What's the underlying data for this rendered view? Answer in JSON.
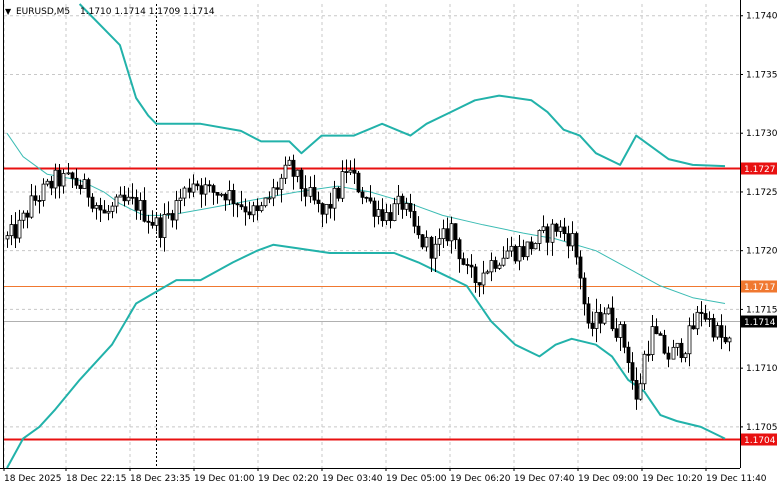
{
  "header": {
    "arrow": "▼",
    "symbol": "EURUSD,M5",
    "ohlc": "1.1710 1.1714 1.1709 1.1714"
  },
  "chart_data": {
    "type": "candlestick",
    "symbol": "EURUSD",
    "timeframe": "M5",
    "ylim": [
      1.17015,
      1.1741
    ],
    "y_ticks": [
      1.1705,
      1.171,
      1.1715,
      1.172,
      1.1725,
      1.173,
      1.1735,
      1.174
    ],
    "y_tick_labels": [
      "1.1705",
      "1.1710",
      "1.1715",
      "1.1720",
      "1.1725",
      "1.1730",
      "1.1735",
      "1.1740"
    ],
    "x_tick_labels": [
      "18 Dec 2025",
      "18 Dec 22:15",
      "18 Dec 23:35",
      "19 Dec 01:00",
      "19 Dec 02:20",
      "19 Dec 03:40",
      "19 Dec 05:00",
      "19 Dec 06:20",
      "19 Dec 07:40",
      "19 Dec 09:00",
      "19 Dec 10:20",
      "19 Dec 11:40"
    ],
    "bar_count": 180,
    "grid": true,
    "levels": [
      {
        "price": 1.1727,
        "label": "1.1727",
        "color": "#e81010",
        "style": "thick"
      },
      {
        "price": 1.1717,
        "label": "1.1717",
        "color": "#f07830",
        "style": "thin"
      },
      {
        "price": 1.1704,
        "label": "1.1704",
        "color": "#e81010",
        "style": "thick"
      }
    ],
    "current_price": {
      "price": 1.1714,
      "label": "1.1714",
      "color": "#000000"
    },
    "period_separator_bar": 37,
    "bollinger_middle": [
      [
        0,
        1.173
      ],
      [
        4,
        1.1728
      ],
      [
        10,
        1.17265
      ],
      [
        18,
        1.1726
      ],
      [
        24,
        1.1725
      ],
      [
        28,
        1.1724
      ],
      [
        34,
        1.1723
      ],
      [
        40,
        1.1723
      ],
      [
        48,
        1.17235
      ],
      [
        56,
        1.1724
      ],
      [
        64,
        1.17245
      ],
      [
        72,
        1.1725
      ],
      [
        82,
        1.17255
      ],
      [
        90,
        1.1725
      ],
      [
        100,
        1.1724
      ],
      [
        108,
        1.1723
      ],
      [
        118,
        1.17222
      ],
      [
        128,
        1.17215
      ],
      [
        136,
        1.1721
      ],
      [
        146,
        1.172
      ],
      [
        154,
        1.17185
      ],
      [
        162,
        1.1717
      ],
      [
        170,
        1.1716
      ],
      [
        178,
        1.17155
      ]
    ],
    "bollinger_upper": [
      [
        18,
        1.1741
      ],
      [
        28,
        1.17375
      ],
      [
        32,
        1.1733
      ],
      [
        35,
        1.17315
      ],
      [
        37,
        1.17308
      ],
      [
        48,
        1.17308
      ],
      [
        58,
        1.17302
      ],
      [
        63,
        1.17293
      ],
      [
        70,
        1.17293
      ],
      [
        73,
        1.17283
      ],
      [
        78,
        1.17298
      ],
      [
        86,
        1.17298
      ],
      [
        93,
        1.17308
      ],
      [
        100,
        1.17298
      ],
      [
        104,
        1.17308
      ],
      [
        110,
        1.17318
      ],
      [
        116,
        1.17328
      ],
      [
        122,
        1.17332
      ],
      [
        130,
        1.17328
      ],
      [
        134,
        1.17318
      ],
      [
        138,
        1.17303
      ],
      [
        142,
        1.17298
      ],
      [
        146,
        1.17283
      ],
      [
        152,
        1.17273
      ],
      [
        156,
        1.17298
      ],
      [
        160,
        1.17288
      ],
      [
        164,
        1.17278
      ],
      [
        170,
        1.17273
      ],
      [
        178,
        1.17272
      ]
    ],
    "bollinger_lower": [
      [
        0,
        1.17015
      ],
      [
        4,
        1.1704
      ],
      [
        8,
        1.1705
      ],
      [
        12,
        1.17065
      ],
      [
        18,
        1.1709
      ],
      [
        26,
        1.1712
      ],
      [
        32,
        1.17155
      ],
      [
        37,
        1.17165
      ],
      [
        42,
        1.17175
      ],
      [
        48,
        1.17175
      ],
      [
        56,
        1.1719
      ],
      [
        62,
        1.172
      ],
      [
        66,
        1.17205
      ],
      [
        72,
        1.17202
      ],
      [
        80,
        1.17198
      ],
      [
        88,
        1.17198
      ],
      [
        96,
        1.17198
      ],
      [
        102,
        1.1719
      ],
      [
        108,
        1.1718
      ],
      [
        114,
        1.1717
      ],
      [
        120,
        1.1714
      ],
      [
        126,
        1.1712
      ],
      [
        132,
        1.1711
      ],
      [
        136,
        1.1712
      ],
      [
        140,
        1.17125
      ],
      [
        146,
        1.1712
      ],
      [
        150,
        1.1711
      ],
      [
        154,
        1.1709
      ],
      [
        158,
        1.1708
      ],
      [
        162,
        1.1706
      ],
      [
        166,
        1.17055
      ],
      [
        172,
        1.1705
      ],
      [
        178,
        1.1704
      ]
    ],
    "close_path": [
      [
        0,
        1.1721
      ],
      [
        3,
        1.1722
      ],
      [
        6,
        1.1724
      ],
      [
        9,
        1.1725
      ],
      [
        12,
        1.1726
      ],
      [
        16,
        1.1726
      ],
      [
        20,
        1.1725
      ],
      [
        24,
        1.1723
      ],
      [
        28,
        1.1724
      ],
      [
        32,
        1.1724
      ],
      [
        36,
        1.17225
      ],
      [
        38,
        1.1722
      ],
      [
        42,
        1.1724
      ],
      [
        46,
        1.1726
      ],
      [
        50,
        1.1725
      ],
      [
        54,
        1.1725
      ],
      [
        58,
        1.1724
      ],
      [
        62,
        1.1723
      ],
      [
        66,
        1.1725
      ],
      [
        70,
        1.1727
      ],
      [
        74,
        1.1725
      ],
      [
        78,
        1.1723
      ],
      [
        82,
        1.1725
      ],
      [
        84,
        1.1727
      ],
      [
        86,
        1.1726
      ],
      [
        90,
        1.1724
      ],
      [
        94,
        1.1723
      ],
      [
        98,
        1.1724
      ],
      [
        102,
        1.1721
      ],
      [
        106,
        1.172
      ],
      [
        110,
        1.1722
      ],
      [
        114,
        1.1718
      ],
      [
        116,
        1.17175
      ],
      [
        120,
        1.1719
      ],
      [
        124,
        1.172
      ],
      [
        128,
        1.172
      ],
      [
        132,
        1.1721
      ],
      [
        136,
        1.1722
      ],
      [
        140,
        1.1721
      ],
      [
        142,
        1.1718
      ],
      [
        144,
        1.1713
      ],
      [
        148,
        1.1715
      ],
      [
        152,
        1.1713
      ],
      [
        154,
        1.1711
      ],
      [
        156,
        1.1707
      ],
      [
        158,
        1.1711
      ],
      [
        160,
        1.1713
      ],
      [
        164,
        1.1711
      ],
      [
        168,
        1.1712
      ],
      [
        172,
        1.1715
      ],
      [
        176,
        1.1713
      ],
      [
        178,
        1.1712
      ]
    ]
  }
}
